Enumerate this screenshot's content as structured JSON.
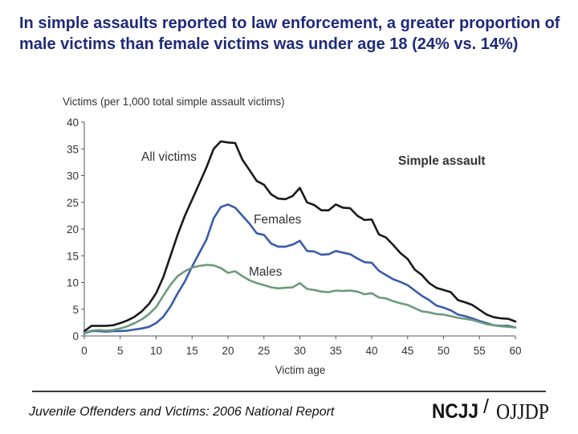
{
  "slide": {
    "title": "In simple assaults reported to law enforcement, a greater proportion of male victims than female victims was under age 18 (24% vs. 14%)",
    "footer": "Juvenile Offenders and Victims: 2006 National Report",
    "logo_text": "NCJJ/OJJDP",
    "logo_left": "NCJJ",
    "logo_slash": "/",
    "logo_right": "OJJDP"
  },
  "colors": {
    "title": "#1f2a7a",
    "all": "#1a1a1a",
    "females": "#3a5da8",
    "males": "#6f9a7e",
    "axis": "#555555",
    "text": "#333333"
  },
  "chart_data": {
    "type": "line",
    "title": "Simple assault",
    "ylabel": "Victims (per 1,000 total simple assault victims)",
    "xlabel": "Victim age",
    "xlim": [
      0,
      60
    ],
    "ylim": [
      0,
      40
    ],
    "xticks": [
      0,
      5,
      10,
      15,
      20,
      25,
      30,
      35,
      40,
      45,
      50,
      55,
      60
    ],
    "yticks": [
      0,
      5,
      10,
      15,
      20,
      25,
      30,
      35,
      40
    ],
    "x": [
      0,
      1,
      2,
      3,
      4,
      5,
      6,
      7,
      8,
      9,
      10,
      11,
      12,
      13,
      14,
      15,
      16,
      17,
      18,
      19,
      20,
      21,
      22,
      23,
      24,
      25,
      26,
      27,
      28,
      29,
      30,
      31,
      32,
      33,
      34,
      35,
      36,
      37,
      38,
      39,
      40,
      41,
      42,
      43,
      44,
      45,
      46,
      47,
      48,
      49,
      50,
      51,
      52,
      53,
      54,
      55,
      56,
      57,
      58,
      59,
      60
    ],
    "series": [
      {
        "name": "All victims",
        "color_key": "all",
        "values": [
          0.9,
          1.9,
          1.9,
          1.9,
          2.0,
          2.4,
          2.9,
          3.6,
          4.6,
          6.0,
          8.0,
          11.0,
          15.0,
          19.0,
          22.5,
          25.5,
          28.5,
          31.5,
          35.0,
          36.4,
          36.2,
          36.1,
          33.0,
          31.0,
          29.0,
          28.3,
          26.5,
          25.7,
          25.6,
          26.2,
          27.7,
          25.0,
          24.5,
          23.5,
          23.5,
          24.6,
          24.0,
          23.9,
          22.5,
          21.7,
          21.8,
          19.0,
          18.4,
          17.0,
          15.5,
          14.4,
          12.4,
          11.4,
          9.9,
          9.0,
          8.6,
          8.2,
          6.7,
          6.3,
          5.8,
          4.9,
          4.0,
          3.5,
          3.3,
          3.2,
          2.7
        ]
      },
      {
        "name": "Females",
        "color_key": "females",
        "values": [
          0.5,
          0.9,
          0.9,
          0.8,
          0.9,
          0.9,
          1.0,
          1.2,
          1.4,
          1.7,
          2.4,
          3.6,
          5.5,
          8.0,
          10.2,
          13.0,
          15.5,
          18.0,
          22.0,
          24.1,
          24.6,
          24.0,
          22.5,
          21.0,
          19.2,
          18.9,
          17.3,
          16.7,
          16.7,
          17.1,
          17.8,
          15.9,
          15.8,
          15.2,
          15.3,
          15.9,
          15.6,
          15.3,
          14.5,
          13.8,
          13.7,
          12.2,
          11.4,
          10.6,
          10.1,
          9.5,
          8.5,
          7.5,
          6.7,
          5.7,
          5.3,
          4.8,
          4.0,
          3.7,
          3.3,
          2.8,
          2.4,
          2.0,
          1.9,
          1.9,
          1.6
        ]
      },
      {
        "name": "Males",
        "color_key": "males",
        "values": [
          0.6,
          1.0,
          1.1,
          1.0,
          1.1,
          1.4,
          1.8,
          2.4,
          3.1,
          4.1,
          5.4,
          7.5,
          9.6,
          11.2,
          12.1,
          12.8,
          13.1,
          13.3,
          13.2,
          12.7,
          11.8,
          12.1,
          11.2,
          10.4,
          9.9,
          9.5,
          9.1,
          8.9,
          9.0,
          9.1,
          9.9,
          8.8,
          8.6,
          8.3,
          8.2,
          8.5,
          8.4,
          8.5,
          8.3,
          7.8,
          8.0,
          7.2,
          7.0,
          6.5,
          6.1,
          5.8,
          5.2,
          4.6,
          4.4,
          4.1,
          4.0,
          3.7,
          3.4,
          3.2,
          3.0,
          2.6,
          2.2,
          2.0,
          1.8,
          1.7,
          1.6
        ]
      }
    ],
    "annotations": [
      "All victims",
      "Females",
      "Males"
    ],
    "legend": "inline labels",
    "grid": false
  }
}
